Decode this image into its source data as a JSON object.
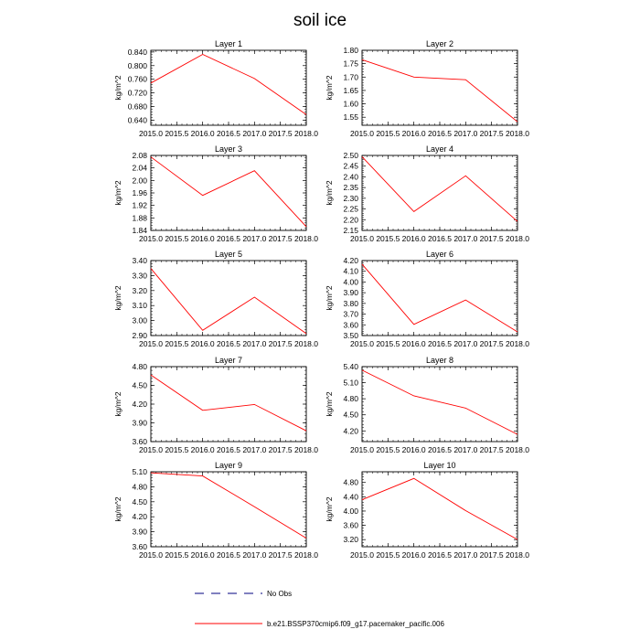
{
  "title": "soil ice",
  "legend": {
    "placement": "bottom",
    "entries": [
      {
        "label": "No Obs",
        "color": "#000080",
        "dash": "dashed"
      },
      {
        "label": "b.e21.BSSP370cmip6.f09_g17.pacemaker_pacific.006",
        "color": "#ff0000",
        "dash": "solid"
      }
    ]
  },
  "chart_data": [
    {
      "type": "line",
      "title": "Layer 1",
      "ylabel": "kg/m^2",
      "x": [
        2015.0,
        2016.0,
        2017.0,
        2018.0
      ],
      "series": [
        {
          "color": "#ff0000",
          "values": [
            0.749,
            0.833,
            0.762,
            0.656
          ]
        }
      ],
      "xlim": [
        2015.0,
        2018.0
      ],
      "ylim": [
        0.625,
        0.845
      ],
      "xticks": [
        "2015.0",
        "2015.5",
        "2016.0",
        "2016.5",
        "2017.0",
        "2017.5",
        "2018.0"
      ],
      "yticks": [
        "0.640",
        "0.680",
        "0.720",
        "0.760",
        "0.800",
        "0.840"
      ]
    },
    {
      "type": "line",
      "title": "Layer 2",
      "ylabel": "kg/m^2",
      "x": [
        2015.0,
        2016.0,
        2017.0,
        2018.0
      ],
      "series": [
        {
          "color": "#ff0000",
          "values": [
            1.765,
            1.7,
            1.69,
            1.533
          ]
        }
      ],
      "xlim": [
        2015.0,
        2018.0
      ],
      "ylim": [
        1.52,
        1.8
      ],
      "xticks": [
        "2015.0",
        "2015.5",
        "2016.0",
        "2016.5",
        "2017.0",
        "2017.5",
        "2018.0"
      ],
      "yticks": [
        "1.55",
        "1.60",
        "1.65",
        "1.70",
        "1.75",
        "1.80"
      ]
    },
    {
      "type": "line",
      "title": "Layer 3",
      "ylabel": "kg/m^2",
      "x": [
        2015.0,
        2016.0,
        2017.0,
        2018.0
      ],
      "series": [
        {
          "color": "#ff0000",
          "values": [
            2.075,
            1.952,
            2.031,
            1.852
          ]
        }
      ],
      "xlim": [
        2015.0,
        2018.0
      ],
      "ylim": [
        1.84,
        2.08
      ],
      "xticks": [
        "2015.0",
        "2015.5",
        "2016.0",
        "2016.5",
        "2017.0",
        "2017.5",
        "2018.0"
      ],
      "yticks": [
        "1.84",
        "1.88",
        "1.92",
        "1.96",
        "2.00",
        "2.04",
        "2.08"
      ]
    },
    {
      "type": "line",
      "title": "Layer 4",
      "ylabel": "kg/m^2",
      "x": [
        2015.0,
        2016.0,
        2017.0,
        2018.0
      ],
      "series": [
        {
          "color": "#ff0000",
          "values": [
            2.494,
            2.238,
            2.405,
            2.192
          ]
        }
      ],
      "xlim": [
        2015.0,
        2018.0
      ],
      "ylim": [
        2.15,
        2.5
      ],
      "xticks": [
        "2015.0",
        "2015.5",
        "2016.0",
        "2016.5",
        "2017.0",
        "2017.5",
        "2018.0"
      ],
      "yticks": [
        "2.15",
        "2.20",
        "2.25",
        "2.30",
        "2.35",
        "2.40",
        "2.45",
        "2.50"
      ]
    },
    {
      "type": "line",
      "title": "Layer 5",
      "ylabel": "kg/m^2",
      "x": [
        2015.0,
        2016.0,
        2017.0,
        2018.0
      ],
      "series": [
        {
          "color": "#ff0000",
          "values": [
            3.347,
            2.935,
            3.156,
            2.913
          ]
        }
      ],
      "xlim": [
        2015.0,
        2018.0
      ],
      "ylim": [
        2.9,
        3.4
      ],
      "xticks": [
        "2015.0",
        "2015.5",
        "2016.0",
        "2016.5",
        "2017.0",
        "2017.5",
        "2018.0"
      ],
      "yticks": [
        "2.90",
        "3.00",
        "3.10",
        "3.20",
        "3.30",
        "3.40"
      ]
    },
    {
      "type": "line",
      "title": "Layer 6",
      "ylabel": "kg/m^2",
      "x": [
        2015.0,
        2016.0,
        2017.0,
        2018.0
      ],
      "series": [
        {
          "color": "#ff0000",
          "values": [
            4.167,
            3.604,
            3.832,
            3.534
          ]
        }
      ],
      "xlim": [
        2015.0,
        2018.0
      ],
      "ylim": [
        3.5,
        4.2
      ],
      "xticks": [
        "2015.0",
        "2015.5",
        "2016.0",
        "2016.5",
        "2017.0",
        "2017.5",
        "2018.0"
      ],
      "yticks": [
        "3.50",
        "3.60",
        "3.70",
        "3.80",
        "3.90",
        "4.00",
        "4.10",
        "4.20"
      ]
    },
    {
      "type": "line",
      "title": "Layer 7",
      "ylabel": "kg/m^2",
      "x": [
        2015.0,
        2016.0,
        2017.0,
        2018.0
      ],
      "series": [
        {
          "color": "#ff0000",
          "values": [
            4.667,
            4.1,
            4.194,
            3.772
          ]
        }
      ],
      "xlim": [
        2015.0,
        2018.0
      ],
      "ylim": [
        3.6,
        4.8
      ],
      "xticks": [
        "2015.0",
        "2015.5",
        "2016.0",
        "2016.5",
        "2017.0",
        "2017.5",
        "2018.0"
      ],
      "yticks": [
        "3.60",
        "3.90",
        "4.20",
        "4.50",
        "4.80"
      ]
    },
    {
      "type": "line",
      "title": "Layer 8",
      "ylabel": "kg/m^2",
      "x": [
        2015.0,
        2016.0,
        2017.0,
        2018.0
      ],
      "series": [
        {
          "color": "#ff0000",
          "values": [
            5.333,
            4.854,
            4.625,
            4.135
          ]
        }
      ],
      "xlim": [
        2015.0,
        2018.0
      ],
      "ylim": [
        4.0,
        5.4
      ],
      "xticks": [
        "2015.0",
        "2015.5",
        "2016.0",
        "2016.5",
        "2017.0",
        "2017.5",
        "2018.0"
      ],
      "yticks": [
        "4.20",
        "4.50",
        "4.80",
        "5.10",
        "5.40"
      ]
    },
    {
      "type": "line",
      "title": "Layer 9",
      "ylabel": "kg/m^2",
      "x": [
        2015.0,
        2016.0,
        2017.0,
        2018.0
      ],
      "series": [
        {
          "color": "#ff0000",
          "values": [
            5.078,
            5.015,
            4.401,
            3.772
          ]
        }
      ],
      "xlim": [
        2015.0,
        2018.0
      ],
      "ylim": [
        3.6,
        5.1
      ],
      "xticks": [
        "2015.0",
        "2015.5",
        "2016.0",
        "2016.5",
        "2017.0",
        "2017.5",
        "2018.0"
      ],
      "yticks": [
        "3.60",
        "3.90",
        "4.20",
        "4.50",
        "4.80",
        "5.10"
      ]
    },
    {
      "type": "line",
      "title": "Layer 10",
      "ylabel": "kg/m^2",
      "x": [
        2015.0,
        2016.0,
        2017.0,
        2018.0
      ],
      "series": [
        {
          "color": "#ff0000",
          "values": [
            4.316,
            4.913,
            4.012,
            3.202
          ]
        }
      ],
      "xlim": [
        2015.0,
        2018.0
      ],
      "ylim": [
        3.0,
        5.1
      ],
      "xticks": [
        "2015.0",
        "2015.5",
        "2016.0",
        "2016.5",
        "2017.0",
        "2017.5",
        "2018.0"
      ],
      "yticks": [
        "3.20",
        "3.60",
        "4.00",
        "4.40",
        "4.80"
      ]
    }
  ]
}
